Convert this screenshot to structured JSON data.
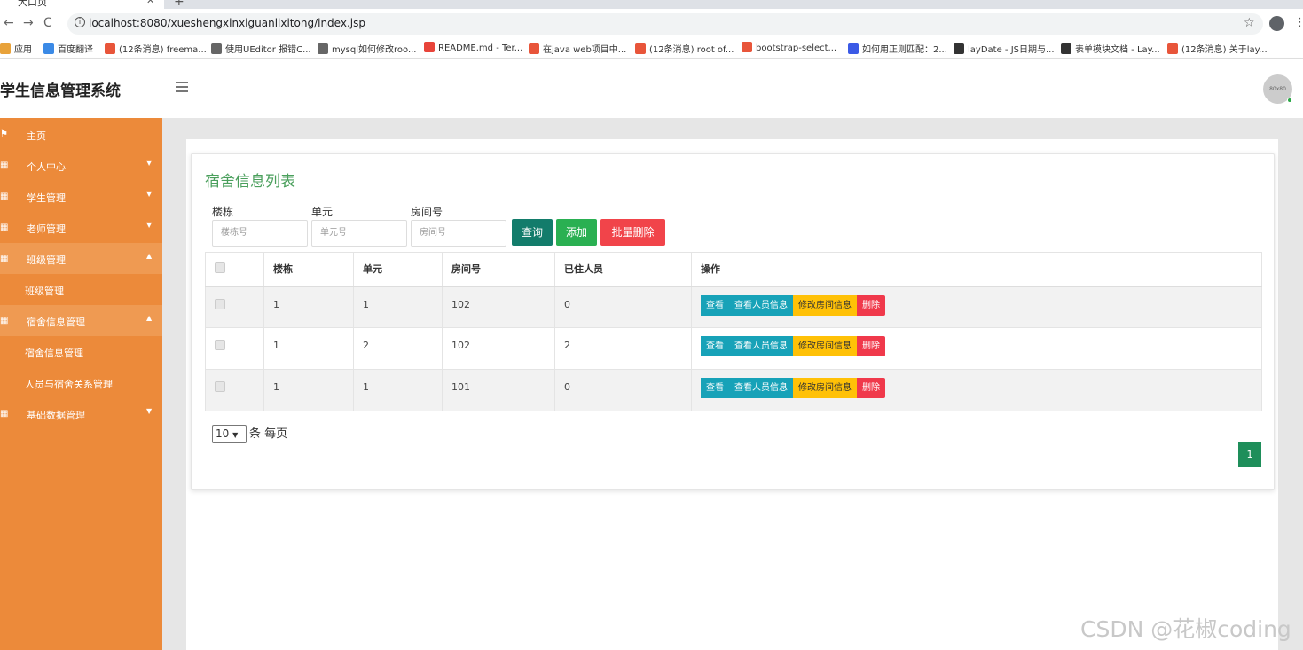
{
  "browser": {
    "tab_title": "大口页",
    "url": "localhost:8080/xueshengxinxiguanlixitong/index.jsp",
    "bookmarks": [
      {
        "label": "应用",
        "color": "#e8a23a"
      },
      {
        "label": "百度翻译",
        "color": "#3b8ae6"
      },
      {
        "label": "(12条消息) freema...",
        "color": "#e8553a"
      },
      {
        "label": "使用UEditor 报错C...",
        "color": "#666666"
      },
      {
        "label": "mysql如何修改roo...",
        "color": "#666666"
      },
      {
        "label": "README.md - Ter...",
        "color": "#e8443a"
      },
      {
        "label": "在java web项目中...",
        "color": "#e8553a"
      },
      {
        "label": "(12条消息) root of...",
        "color": "#e8553a"
      },
      {
        "label": "bootstrap-select...",
        "color": "#e8553a"
      },
      {
        "label": "如何用正则匹配：2...",
        "color": "#3b5ae6"
      },
      {
        "label": "layDate - JS日期与...",
        "color": "#333333"
      },
      {
        "label": "表单模块文档 - Lay...",
        "color": "#333333"
      },
      {
        "label": "(12条消息) 关于lay...",
        "color": "#e8553a"
      }
    ]
  },
  "header": {
    "brand": "学生信息管理系统",
    "avatar_text": "80x80"
  },
  "sidebar": {
    "items": [
      {
        "label": "主页",
        "icon": "flag-icon",
        "type": "item"
      },
      {
        "label": "个人中心",
        "icon": "grid-icon",
        "type": "item",
        "caret": "▼"
      },
      {
        "label": "学生管理",
        "icon": "grid-icon",
        "type": "item",
        "caret": "▼"
      },
      {
        "label": "老师管理",
        "icon": "grid-icon",
        "type": "item",
        "caret": "▼"
      },
      {
        "label": "班级管理",
        "icon": "grid-icon",
        "type": "item",
        "caret": "▲",
        "active": true
      },
      {
        "label": "班级管理",
        "type": "sub"
      },
      {
        "label": "宿舍信息管理",
        "icon": "grid-icon",
        "type": "item",
        "caret": "▲",
        "active": true
      },
      {
        "label": "宿舍信息管理",
        "type": "sub"
      },
      {
        "label": "人员与宿舍关系管理",
        "type": "sub"
      },
      {
        "label": "基础数据管理",
        "icon": "grid-icon",
        "type": "item",
        "caret": "▼"
      }
    ]
  },
  "main": {
    "title": "宿舍信息列表",
    "filters": {
      "building_label": "楼栋",
      "building_placeholder": "楼栋号",
      "unit_label": "单元",
      "unit_placeholder": "单元号",
      "room_label": "房间号",
      "room_placeholder": "房间号"
    },
    "buttons": {
      "query": "查询",
      "add": "添加",
      "batch_delete": "批量删除"
    },
    "table": {
      "columns": [
        "楼栋",
        "单元",
        "房间号",
        "已住人员",
        "操作"
      ],
      "rows": [
        {
          "building": "1",
          "unit": "1",
          "room": "102",
          "residents": "0"
        },
        {
          "building": "1",
          "unit": "2",
          "room": "102",
          "residents": "2"
        },
        {
          "building": "1",
          "unit": "1",
          "room": "101",
          "residents": "0"
        }
      ],
      "actions": {
        "view": "查看",
        "view_people": "查看人员信息",
        "edit_room": "修改房间信息",
        "delete": "删除"
      }
    },
    "pagination": {
      "page_size": "10",
      "page_size_suffix": "条 每页",
      "current_page": "1"
    }
  },
  "watermark": "CSDN @花椒coding"
}
